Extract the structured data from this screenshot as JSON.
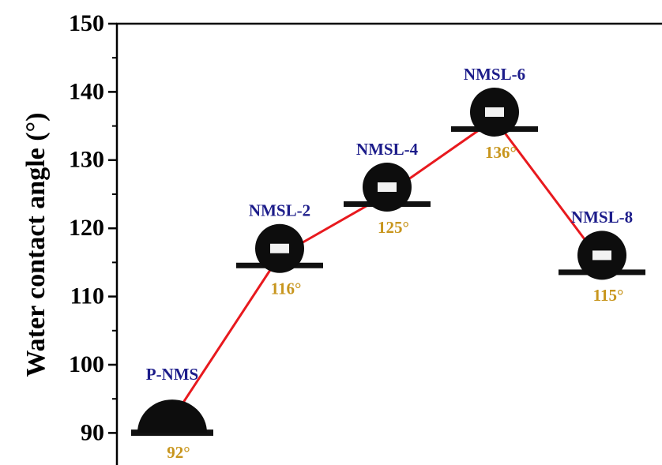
{
  "chart_data": {
    "type": "line",
    "ylabel": "Water contact angle (°)",
    "categories": [
      "P-NMS",
      "NMSL-2",
      "NMSL-4",
      "NMSL-6",
      "NMSL-8"
    ],
    "values": [
      92,
      116,
      125,
      136,
      115
    ],
    "value_labels": [
      "92°",
      "116°",
      "125°",
      "136°",
      "115°"
    ],
    "color": "#e8191e",
    "ylim": [
      85.3,
      150
    ],
    "yticks": [
      90,
      100,
      110,
      120,
      130,
      140,
      150
    ]
  }
}
